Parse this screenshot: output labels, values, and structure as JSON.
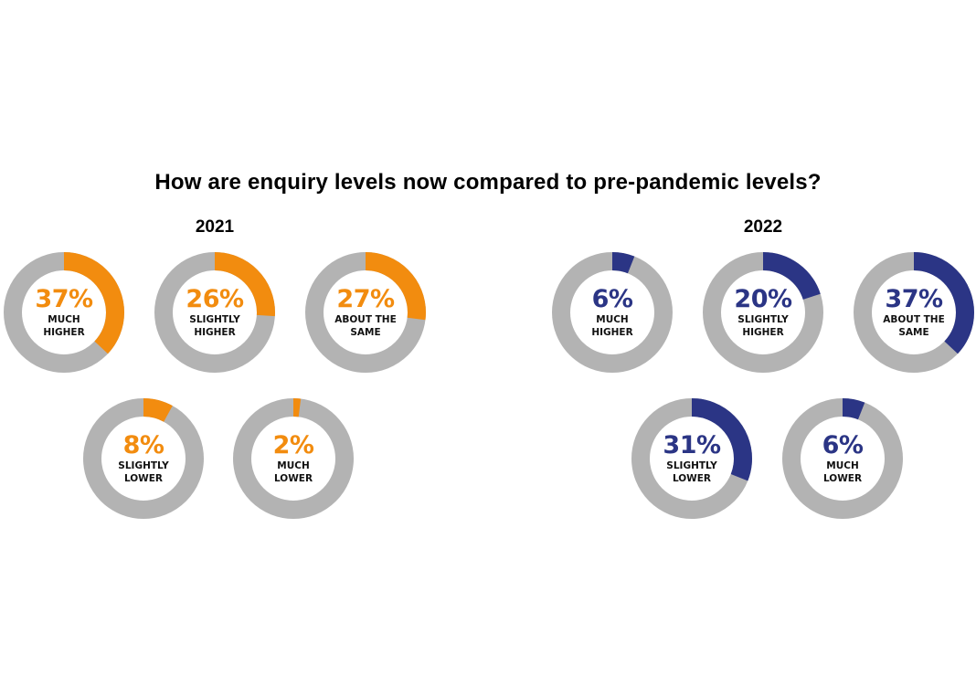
{
  "chart_data": {
    "type": "pie",
    "title": "How are enquiry levels now compared to pre-pandemic levels?",
    "track_color": "#B3B3B3",
    "groups": [
      {
        "name": "2021",
        "color": "#F28C0F",
        "items": [
          {
            "value": 37,
            "pct_text": "37%",
            "label": "MUCH\nHIGHER"
          },
          {
            "value": 26,
            "pct_text": "26%",
            "label": "SLIGHTLY\nHIGHER"
          },
          {
            "value": 27,
            "pct_text": "27%",
            "label": "ABOUT THE\nSAME"
          },
          {
            "value": 8,
            "pct_text": "8%",
            "label": "SLIGHTLY\nLOWER"
          },
          {
            "value": 2,
            "pct_text": "2%",
            "label": "MUCH\nLOWER"
          }
        ]
      },
      {
        "name": "2022",
        "color": "#2B3585",
        "items": [
          {
            "value": 6,
            "pct_text": "6%",
            "label": "MUCH\nHIGHER"
          },
          {
            "value": 20,
            "pct_text": "20%",
            "label": "SLIGHTLY\nHIGHER"
          },
          {
            "value": 37,
            "pct_text": "37%",
            "label": "ABOUT THE\nSAME"
          },
          {
            "value": 31,
            "pct_text": "31%",
            "label": "SLIGHTLY\nLOWER"
          },
          {
            "value": 6,
            "pct_text": "6%",
            "label": "MUCH\nLOWER"
          }
        ]
      }
    ]
  }
}
